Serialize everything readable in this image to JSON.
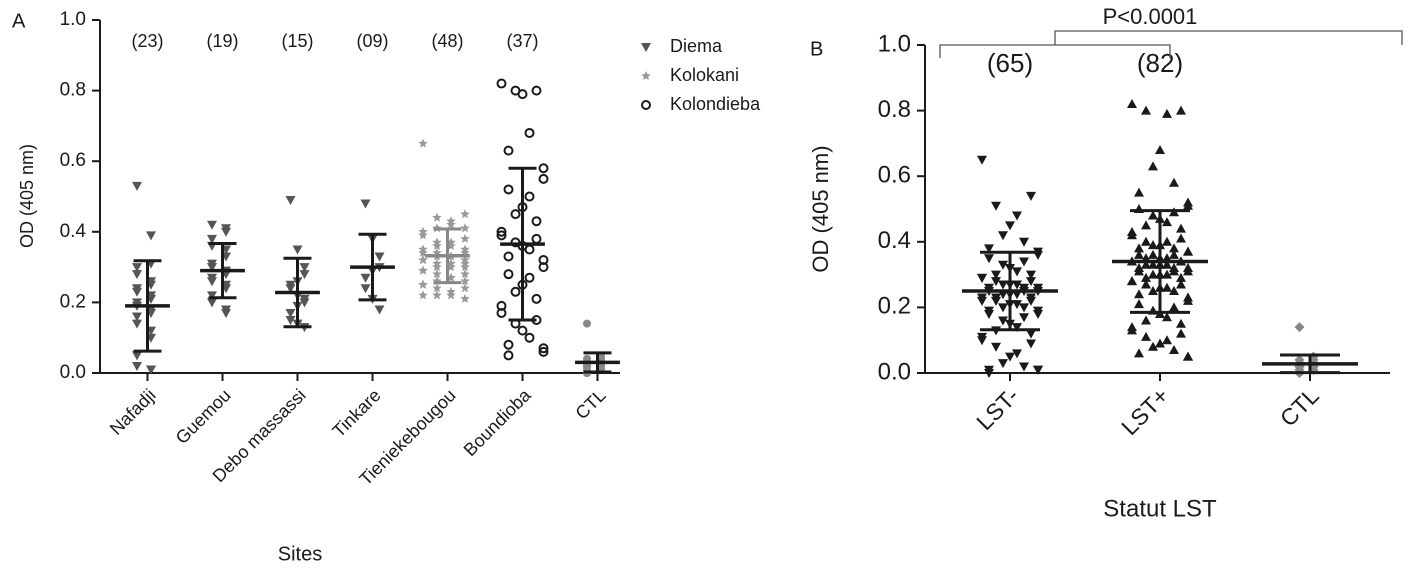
{
  "chart_data": [
    {
      "type": "dot",
      "panel_label": "A",
      "xlabel": "Sites",
      "ylabel": "OD (405 nm)",
      "ylim": [
        0,
        1
      ],
      "yticks": [
        {
          "value": 0,
          "label": "0.0"
        },
        0.2,
        0.4,
        0.6,
        0.8,
        {
          "value": 1,
          "label": "1.0"
        }
      ],
      "legend": [
        {
          "name": "Diema",
          "marker": "triangle-down",
          "color": "#555555"
        },
        {
          "name": "Kolokani",
          "marker": "star",
          "color": "#999999"
        },
        {
          "name": "Kolondieba",
          "marker": "circle-open",
          "color": "#1a1a1a"
        }
      ],
      "groups": [
        {
          "category": "Nafadji",
          "n_label": "(23)",
          "marker": "triangle-down",
          "color": "#555555",
          "mean": 0.19,
          "sd": 0.128,
          "values": [
            0.53,
            0.39,
            0.31,
            0.3,
            0.28,
            0.26,
            0.25,
            0.24,
            0.23,
            0.22,
            0.21,
            0.2,
            0.19,
            0.18,
            0.17,
            0.16,
            0.14,
            0.12,
            0.1,
            0.05,
            0.02,
            0.01,
            0.01
          ]
        },
        {
          "category": "Guemou",
          "n_label": "(19)",
          "marker": "triangle-down",
          "color": "#555555",
          "mean": 0.29,
          "sd": 0.077,
          "values": [
            0.42,
            0.41,
            0.4,
            0.38,
            0.36,
            0.35,
            0.33,
            0.31,
            0.3,
            0.29,
            0.28,
            0.27,
            0.26,
            0.25,
            0.24,
            0.22,
            0.2,
            0.18,
            0.17
          ]
        },
        {
          "category": "Debo massassi",
          "n_label": "(15)",
          "marker": "triangle-down",
          "color": "#555555",
          "mean": 0.228,
          "sd": 0.097,
          "values": [
            0.49,
            0.35,
            0.3,
            0.28,
            0.26,
            0.25,
            0.24,
            0.22,
            0.21,
            0.2,
            0.19,
            0.17,
            0.15,
            0.14,
            0.13
          ]
        },
        {
          "category": "Tinkare",
          "n_label": "(09)",
          "marker": "triangle-down",
          "color": "#555555",
          "mean": 0.3,
          "sd": 0.093,
          "values": [
            0.48,
            0.38,
            0.33,
            0.3,
            0.29,
            0.27,
            0.24,
            0.21,
            0.18
          ]
        },
        {
          "category": "Tieniekebougou",
          "n_label": "(48)",
          "marker": "star",
          "color": "#999999",
          "mean": 0.332,
          "sd": 0.076,
          "values": [
            0.65,
            0.45,
            0.44,
            0.43,
            0.42,
            0.41,
            0.41,
            0.4,
            0.39,
            0.38,
            0.37,
            0.37,
            0.36,
            0.36,
            0.35,
            0.35,
            0.34,
            0.34,
            0.34,
            0.33,
            0.33,
            0.33,
            0.32,
            0.32,
            0.32,
            0.31,
            0.31,
            0.31,
            0.3,
            0.3,
            0.3,
            0.29,
            0.29,
            0.28,
            0.28,
            0.27,
            0.27,
            0.26,
            0.26,
            0.25,
            0.25,
            0.24,
            0.24,
            0.23,
            0.22,
            0.22,
            0.21,
            0.22
          ]
        },
        {
          "category": "Boundioba",
          "n_label": "(37)",
          "marker": "circle-open",
          "color": "#1a1a1a",
          "mean": 0.365,
          "sd": 0.215,
          "values": [
            0.82,
            0.8,
            0.8,
            0.79,
            0.68,
            0.63,
            0.58,
            0.55,
            0.52,
            0.5,
            0.47,
            0.45,
            0.43,
            0.4,
            0.39,
            0.38,
            0.37,
            0.36,
            0.35,
            0.33,
            0.32,
            0.3,
            0.28,
            0.27,
            0.25,
            0.23,
            0.21,
            0.19,
            0.17,
            0.15,
            0.14,
            0.12,
            0.1,
            0.08,
            0.07,
            0.06,
            0.05
          ]
        },
        {
          "category": "CTL",
          "marker": "circle",
          "color": "#888888",
          "mean": 0.03,
          "sd": 0.027,
          "values": [
            0.14,
            0.05,
            0.04,
            0.04,
            0.03,
            0.03,
            0.03,
            0.03,
            0.02,
            0.02,
            0.02,
            0.02,
            0.01,
            0.01,
            0.01,
            0.0,
            0.0,
            0.04,
            0.03,
            0.02
          ]
        }
      ]
    },
    {
      "type": "dot",
      "panel_label": "B",
      "xlabel": "Statut LST",
      "ylabel": "OD (405 nm)",
      "ylim": [
        0,
        1
      ],
      "yticks": [
        {
          "value": 0,
          "label": "0.0"
        },
        0.2,
        0.4,
        0.6,
        0.8,
        {
          "value": 1,
          "label": "1.0"
        }
      ],
      "comparison": "P<0.0001",
      "groups": [
        {
          "category": "LST-",
          "n_label": "(65)",
          "marker": "triangle-down",
          "color": "#1a1a1a",
          "mean": 0.25,
          "sd": 0.118,
          "values": [
            0.65,
            0.54,
            0.51,
            0.48,
            0.45,
            0.42,
            0.4,
            0.38,
            0.37,
            0.36,
            0.35,
            0.34,
            0.33,
            0.32,
            0.31,
            0.3,
            0.3,
            0.29,
            0.29,
            0.28,
            0.28,
            0.27,
            0.27,
            0.27,
            0.26,
            0.26,
            0.26,
            0.25,
            0.25,
            0.25,
            0.24,
            0.24,
            0.24,
            0.23,
            0.23,
            0.23,
            0.22,
            0.22,
            0.22,
            0.21,
            0.21,
            0.2,
            0.2,
            0.19,
            0.19,
            0.18,
            0.18,
            0.17,
            0.16,
            0.15,
            0.14,
            0.13,
            0.12,
            0.11,
            0.1,
            0.09,
            0.08,
            0.06,
            0.05,
            0.03,
            0.02,
            0.01,
            0.01,
            0.01,
            0.0
          ]
        },
        {
          "category": "LST+",
          "n_label": "(82)",
          "marker": "triangle-up",
          "color": "#1a1a1a",
          "mean": 0.34,
          "sd": 0.155,
          "values": [
            0.82,
            0.8,
            0.8,
            0.79,
            0.68,
            0.63,
            0.58,
            0.55,
            0.52,
            0.51,
            0.5,
            0.49,
            0.48,
            0.47,
            0.46,
            0.45,
            0.44,
            0.43,
            0.42,
            0.41,
            0.4,
            0.4,
            0.39,
            0.39,
            0.38,
            0.38,
            0.37,
            0.37,
            0.36,
            0.36,
            0.36,
            0.35,
            0.35,
            0.35,
            0.34,
            0.34,
            0.34,
            0.34,
            0.33,
            0.33,
            0.33,
            0.33,
            0.32,
            0.32,
            0.32,
            0.31,
            0.31,
            0.31,
            0.3,
            0.3,
            0.3,
            0.29,
            0.29,
            0.28,
            0.28,
            0.27,
            0.27,
            0.26,
            0.26,
            0.25,
            0.25,
            0.24,
            0.23,
            0.22,
            0.21,
            0.2,
            0.19,
            0.18,
            0.17,
            0.16,
            0.15,
            0.14,
            0.13,
            0.12,
            0.11,
            0.1,
            0.09,
            0.08,
            0.07,
            0.06,
            0.05,
            0.05
          ]
        },
        {
          "category": "CTL",
          "marker": "diamond",
          "color": "#888888",
          "mean": 0.028,
          "sd": 0.027,
          "values": [
            0.14,
            0.05,
            0.04,
            0.04,
            0.03,
            0.03,
            0.03,
            0.03,
            0.02,
            0.02,
            0.02,
            0.02,
            0.01,
            0.01,
            0.01,
            0.0,
            0.0,
            0.04,
            0.03,
            0.02
          ]
        }
      ]
    }
  ]
}
